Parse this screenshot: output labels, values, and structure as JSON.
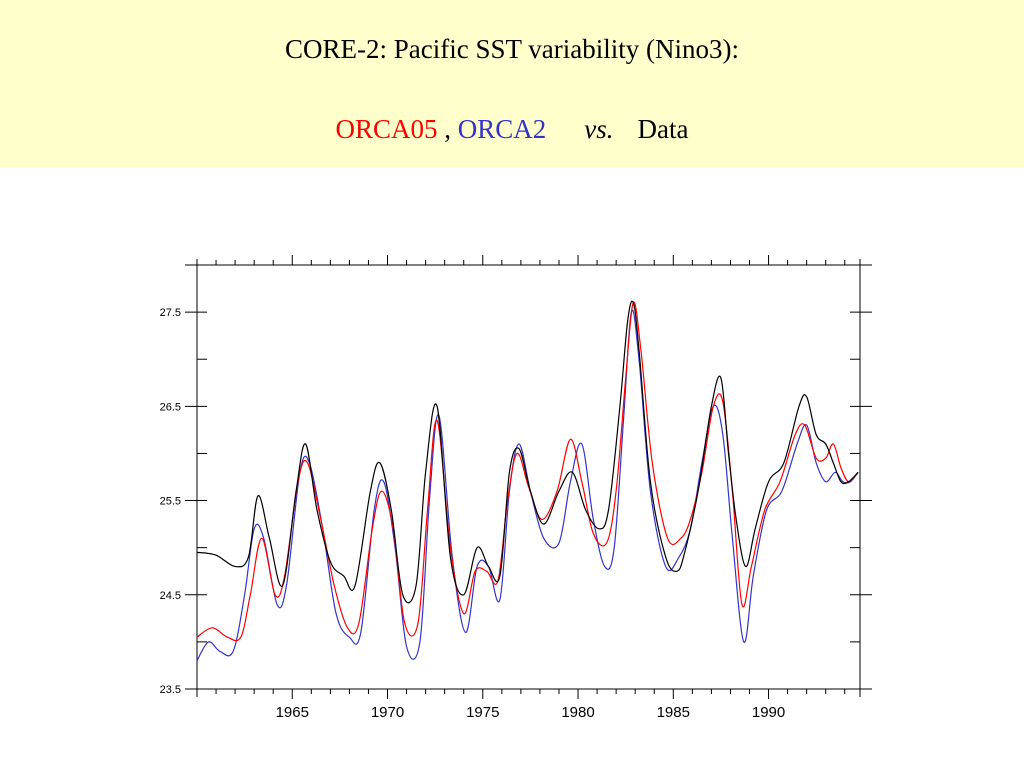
{
  "header": {
    "title": "CORE-2:  Pacific SST variability (Nino3):",
    "subtitle_parts": {
      "orca05": "ORCA05",
      "comma": ",",
      "orca2": "ORCA2",
      "vs": "vs.",
      "data": "Data"
    },
    "colors": {
      "background": "#ffffcc",
      "orca05": "#ff0000",
      "orca2": "#3333cc"
    }
  },
  "chart_data": {
    "type": "line",
    "title": "",
    "xlabel": "",
    "ylabel": "",
    "xlim": [
      1960.0,
      1994.8
    ],
    "ylim": [
      23.5,
      28.0
    ],
    "x_ticks": [
      1965,
      1970,
      1975,
      1980,
      1985,
      1990
    ],
    "y_ticks": [
      23.5,
      24.5,
      25.5,
      26.5,
      27.5
    ],
    "grid": false,
    "series": [
      {
        "name": "Data",
        "color": "#000000",
        "x": [
          1960.0,
          1961.0,
          1962.0,
          1962.7,
          1963.2,
          1963.8,
          1964.5,
          1965.2,
          1965.7,
          1966.3,
          1967.0,
          1967.7,
          1968.3,
          1969.1,
          1969.6,
          1970.2,
          1970.8,
          1971.5,
          1972.0,
          1972.6,
          1973.3,
          1974.0,
          1974.7,
          1975.3,
          1975.9,
          1976.4,
          1976.9,
          1977.5,
          1978.2,
          1979.0,
          1979.7,
          1980.4,
          1981.1,
          1981.6,
          1982.2,
          1982.6,
          1982.9,
          1983.2,
          1983.8,
          1984.6,
          1985.2,
          1985.6,
          1986.3,
          1987.0,
          1987.5,
          1987.9,
          1988.3,
          1988.8,
          1989.3,
          1990.0,
          1990.8,
          1991.6,
          1992.0,
          1992.5,
          1993.0,
          1993.4,
          1993.8,
          1994.2,
          1994.7
        ],
        "values": [
          24.95,
          24.92,
          24.8,
          24.9,
          25.55,
          25.1,
          24.6,
          25.6,
          26.1,
          25.4,
          24.85,
          24.7,
          24.6,
          25.6,
          25.9,
          25.4,
          24.5,
          24.6,
          25.8,
          26.5,
          24.9,
          24.5,
          25.0,
          24.8,
          24.7,
          25.8,
          26.05,
          25.6,
          25.25,
          25.6,
          25.8,
          25.4,
          25.2,
          25.4,
          26.5,
          27.4,
          27.6,
          27.1,
          25.7,
          24.9,
          24.75,
          24.95,
          25.6,
          26.5,
          26.8,
          26.0,
          25.3,
          24.8,
          25.2,
          25.7,
          25.9,
          26.5,
          26.6,
          26.2,
          26.1,
          25.9,
          25.7,
          25.7,
          25.8
        ]
      },
      {
        "name": "ORCA05",
        "color": "#ff0000",
        "x": [
          1960.0,
          1960.8,
          1961.6,
          1962.3,
          1962.8,
          1963.4,
          1964.1,
          1964.6,
          1965.3,
          1965.8,
          1966.5,
          1967.2,
          1967.9,
          1968.5,
          1969.2,
          1969.7,
          1970.3,
          1970.9,
          1971.6,
          1972.1,
          1972.6,
          1973.3,
          1974.0,
          1974.6,
          1975.2,
          1975.8,
          1976.3,
          1976.8,
          1977.4,
          1978.1,
          1978.9,
          1979.6,
          1980.2,
          1980.8,
          1981.5,
          1982.0,
          1982.5,
          1982.9,
          1983.3,
          1983.9,
          1984.7,
          1985.4,
          1985.9,
          1986.5,
          1987.1,
          1987.6,
          1988.1,
          1988.6,
          1989.1,
          1989.8,
          1990.6,
          1991.4,
          1991.9,
          1992.5,
          1993.0,
          1993.4,
          1993.8,
          1994.2,
          1994.7
        ],
        "values": [
          24.05,
          24.15,
          24.05,
          24.05,
          24.5,
          25.1,
          24.5,
          24.7,
          25.7,
          25.9,
          25.3,
          24.6,
          24.15,
          24.2,
          25.2,
          25.6,
          25.2,
          24.2,
          24.2,
          25.4,
          26.35,
          25.0,
          24.3,
          24.75,
          24.75,
          24.65,
          25.5,
          26.0,
          25.65,
          25.3,
          25.6,
          26.15,
          25.7,
          25.15,
          25.05,
          25.6,
          26.8,
          27.6,
          27.1,
          25.9,
          25.1,
          25.1,
          25.3,
          25.8,
          26.5,
          26.55,
          25.6,
          24.4,
          24.8,
          25.4,
          25.7,
          26.2,
          26.3,
          25.95,
          25.95,
          26.1,
          25.85,
          25.7,
          25.8
        ]
      },
      {
        "name": "ORCA2",
        "color": "#3333cc",
        "x": [
          1960.0,
          1960.6,
          1961.2,
          1961.9,
          1962.5,
          1963.0,
          1963.5,
          1964.2,
          1964.7,
          1965.4,
          1965.9,
          1966.6,
          1967.3,
          1968.0,
          1968.6,
          1969.3,
          1969.8,
          1970.4,
          1971.0,
          1971.7,
          1972.2,
          1972.7,
          1973.4,
          1974.1,
          1974.7,
          1975.3,
          1975.9,
          1976.4,
          1976.9,
          1977.5,
          1978.2,
          1979.0,
          1979.6,
          1980.2,
          1980.8,
          1981.4,
          1981.9,
          1982.4,
          1982.8,
          1983.2,
          1983.8,
          1984.6,
          1985.3,
          1985.9,
          1986.5,
          1987.1,
          1987.6,
          1988.1,
          1988.7,
          1989.2,
          1989.9,
          1990.7,
          1991.5,
          1992.0,
          1992.5,
          1993.0,
          1993.5,
          1993.9,
          1994.3,
          1994.7
        ],
        "values": [
          23.8,
          24.0,
          23.9,
          23.9,
          24.5,
          25.2,
          25.1,
          24.4,
          24.6,
          25.8,
          25.9,
          25.2,
          24.3,
          24.05,
          24.1,
          25.4,
          25.7,
          25.0,
          23.95,
          24.0,
          25.5,
          26.4,
          24.9,
          24.1,
          24.8,
          24.8,
          24.45,
          25.6,
          26.1,
          25.6,
          25.1,
          25.05,
          25.7,
          26.1,
          25.3,
          24.8,
          25.0,
          26.4,
          27.5,
          27.0,
          25.6,
          24.8,
          24.9,
          25.2,
          25.9,
          26.5,
          26.2,
          25.1,
          24.0,
          24.7,
          25.4,
          25.6,
          26.1,
          26.3,
          25.9,
          25.7,
          25.8,
          25.7,
          25.7,
          25.8
        ]
      }
    ]
  }
}
